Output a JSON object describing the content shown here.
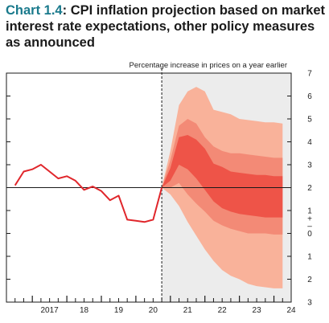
{
  "chart_data": {
    "type": "area",
    "title_prefix": "Chart 1.4",
    "title_suffix": ": CPI inflation projection based on market interest rate expectations, other policy measures as announced",
    "subtitle": "Percentage increase in prices on a year earlier",
    "x_tick_labels": [
      "2017",
      "18",
      "19",
      "20",
      "21",
      "22",
      "23",
      "24"
    ],
    "x_tick_values": [
      2017,
      2018,
      2019,
      2020,
      2021,
      2022,
      2023,
      2024
    ],
    "xlim": [
      2016.25,
      2024.5
    ],
    "y_tick_values": [
      7,
      6,
      5,
      4,
      3,
      2,
      1,
      0,
      -1,
      -2,
      -3
    ],
    "y_tick_labels": [
      "7",
      "6",
      "5",
      "4",
      "3",
      "2",
      "1",
      "0",
      "1",
      "2",
      "3"
    ],
    "ylim": [
      -3,
      7
    ],
    "y_break_symbol": "+\n–",
    "target": 2,
    "projection_start": 2020.75,
    "outturn": {
      "x": [
        2016.5,
        2016.75,
        2017.0,
        2017.25,
        2017.5,
        2017.75,
        2018.0,
        2018.25,
        2018.5,
        2018.75,
        2019.0,
        2019.25,
        2019.5,
        2019.75,
        2020.0,
        2020.25,
        2020.5,
        2020.75
      ],
      "y": [
        2.1,
        2.7,
        2.8,
        3.0,
        2.7,
        2.4,
        2.5,
        2.3,
        1.9,
        2.05,
        1.85,
        1.45,
        1.65,
        0.6,
        0.55,
        0.5,
        0.6,
        2.0
      ]
    },
    "fan": {
      "x": [
        2020.75,
        2021.0,
        2021.25,
        2021.5,
        2021.75,
        2022.0,
        2022.25,
        2022.5,
        2022.75,
        2023.0,
        2023.25,
        2023.5,
        2023.75,
        2024.0,
        2024.25
      ],
      "bands": [
        {
          "name": "outer",
          "lower": [
            2.0,
            1.7,
            1.2,
            0.5,
            -0.1,
            -0.7,
            -1.2,
            -1.6,
            -1.85,
            -2.0,
            -2.2,
            -2.3,
            -2.35,
            -2.4,
            -2.4
          ],
          "upper": [
            2.0,
            3.6,
            5.6,
            6.2,
            6.4,
            6.2,
            5.4,
            5.3,
            5.2,
            5.0,
            4.95,
            4.9,
            4.85,
            4.85,
            4.8
          ]
        },
        {
          "name": "middle",
          "lower": [
            2.0,
            2.0,
            2.2,
            1.7,
            1.3,
            0.95,
            0.55,
            0.35,
            0.2,
            0.1,
            0.0,
            0.0,
            0.0,
            -0.05,
            -0.05
          ],
          "upper": [
            2.0,
            3.2,
            4.7,
            5.0,
            4.8,
            4.2,
            3.8,
            3.6,
            3.5,
            3.5,
            3.45,
            3.4,
            3.35,
            3.3,
            3.3
          ]
        },
        {
          "name": "inner",
          "lower": [
            2.0,
            2.3,
            3.0,
            2.8,
            2.4,
            1.9,
            1.4,
            1.1,
            0.95,
            0.85,
            0.8,
            0.75,
            0.7,
            0.7,
            0.7
          ],
          "upper": [
            2.0,
            2.85,
            4.2,
            4.3,
            4.1,
            3.7,
            3.05,
            2.9,
            2.7,
            2.65,
            2.6,
            2.55,
            2.55,
            2.5,
            2.5
          ]
        }
      ]
    },
    "colors": {
      "outturn": "#e0262b",
      "band_outer": "#f9b29a",
      "band_middle": "#f38a76",
      "band_inner": "#ee5448",
      "projection_bg": "#ececec",
      "axis": "#1a1a1a",
      "title_accent": "#1a7a8c"
    }
  }
}
